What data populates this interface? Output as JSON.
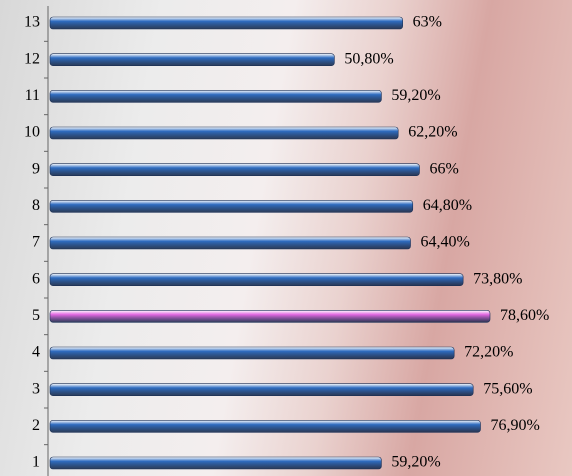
{
  "chart_data": {
    "type": "hbar",
    "categories": [
      "1",
      "2",
      "3",
      "4",
      "5",
      "6",
      "7",
      "8",
      "9",
      "10",
      "11",
      "12",
      "13"
    ],
    "values": [
      59.2,
      76.9,
      75.6,
      72.2,
      78.6,
      73.8,
      64.4,
      64.8,
      66,
      62.2,
      59.2,
      50.8,
      63
    ],
    "value_labels": [
      "59,20%",
      "76,90%",
      "75,60%",
      "72,20%",
      "78,60%",
      "73,80%",
      "64,40%",
      "64,80%",
      "66%",
      "62,20%",
      "59,20%",
      "50,80%",
      "63%"
    ],
    "colors": [
      "#2f6cc0",
      "#2f6cc0",
      "#2f6cc0",
      "#2f6cc0",
      "#e268e2",
      "#2f6cc0",
      "#2f6cc0",
      "#2f6cc0",
      "#2f6cc0",
      "#2f6cc0",
      "#2f6cc0",
      "#2f6cc0",
      "#2f6cc0"
    ]
  }
}
